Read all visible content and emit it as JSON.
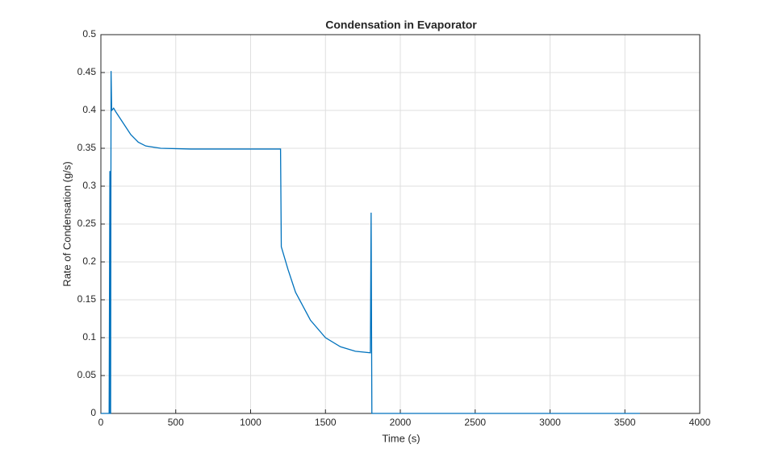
{
  "chart_data": {
    "type": "line",
    "title": "Condensation in Evaporator",
    "xlabel": "Time (s)",
    "ylabel": "Rate of Condensation (g/s)",
    "series": [
      {
        "name": "Condensation",
        "color": "#0072bd",
        "x": [
          0,
          55,
          60,
          62,
          65,
          68,
          72,
          85,
          100,
          150,
          200,
          250,
          300,
          400,
          600,
          1200,
          1205,
          1250,
          1300,
          1400,
          1500,
          1600,
          1700,
          1800,
          1805,
          1810,
          3600
        ],
        "values": [
          0,
          0,
          0.32,
          0,
          0,
          0.452,
          0.4,
          0.403,
          0.398,
          0.383,
          0.368,
          0.358,
          0.353,
          0.35,
          0.349,
          0.349,
          0.22,
          0.19,
          0.16,
          0.123,
          0.1,
          0.088,
          0.082,
          0.08,
          0.265,
          0,
          0
        ]
      }
    ],
    "xlim": [
      0,
      4000
    ],
    "xticks": [
      0,
      500,
      1000,
      1500,
      2000,
      2500,
      3000,
      3500,
      4000
    ],
    "ylim": [
      0,
      0.5
    ],
    "yticks": [
      0,
      0.05,
      0.1,
      0.15,
      0.2,
      0.25,
      0.3,
      0.35,
      0.4,
      0.45,
      0.5
    ],
    "grid": true
  }
}
